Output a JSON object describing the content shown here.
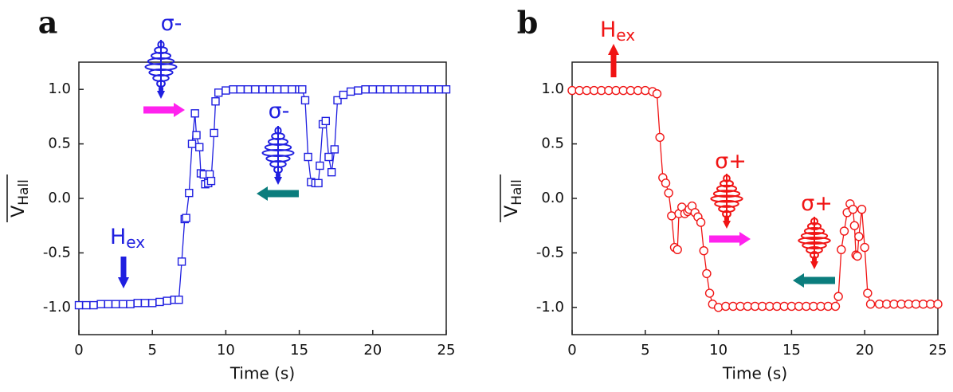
{
  "chart_data": [
    {
      "type": "line",
      "panel_label": "a",
      "xlabel": "Time (s)",
      "ylabel": "V",
      "ylabel_sub": "Hall",
      "xlim": [
        0,
        25
      ],
      "xticks": [
        0,
        5,
        10,
        15,
        20,
        25
      ],
      "ylim": [
        -1.25,
        1.25
      ],
      "yticks": [
        {
          "value": -1,
          "label": "-1.0"
        },
        -0.5,
        {
          "value": 0,
          "label": "0.0"
        },
        0.5,
        {
          "value": 1,
          "label": "1.0"
        }
      ],
      "annotations": [
        {
          "text": "σ-"
        },
        {
          "text": "σ-"
        },
        {
          "text": "H",
          "sub": "ex"
        }
      ],
      "series": [
        {
          "color": "#1f1fe0",
          "marker": "square",
          "x": [
            0,
            0.5,
            1,
            1.5,
            2,
            2.5,
            3,
            3.5,
            4,
            4.5,
            5,
            5.5,
            6,
            6.5,
            6.8,
            7.0,
            7.2,
            7.3,
            7.5,
            7.7,
            7.9,
            8.0,
            8.2,
            8.3,
            8.5,
            8.6,
            8.8,
            8.9,
            9.0,
            9.2,
            9.3,
            9.5,
            10,
            10.5,
            11,
            11.5,
            12,
            12.5,
            13,
            13.5,
            14,
            14.5,
            15,
            15.2,
            15.4,
            15.6,
            15.8,
            16.1,
            16.3,
            16.4,
            16.6,
            16.8,
            17.0,
            17.2,
            17.4,
            17.6,
            18,
            18.5,
            19,
            19.5,
            20,
            20.5,
            21,
            21.5,
            22,
            22.5,
            23,
            23.5,
            24,
            24.5,
            25
          ],
          "values": [
            -0.98,
            -0.98,
            -0.98,
            -0.97,
            -0.97,
            -0.97,
            -0.97,
            -0.97,
            -0.96,
            -0.96,
            -0.96,
            -0.95,
            -0.94,
            -0.93,
            -0.93,
            -0.58,
            -0.19,
            -0.18,
            0.05,
            0.5,
            0.78,
            0.58,
            0.47,
            0.23,
            0.22,
            0.13,
            0.14,
            0.22,
            0.16,
            0.6,
            0.89,
            0.97,
            0.99,
            1,
            1,
            1,
            1,
            1,
            1,
            1,
            1,
            1,
            1,
            1,
            0.9,
            0.38,
            0.15,
            0.14,
            0.14,
            0.3,
            0.68,
            0.71,
            0.38,
            0.24,
            0.45,
            0.9,
            0.95,
            0.98,
            0.99,
            1,
            1,
            1,
            1,
            1,
            1,
            1,
            1,
            1,
            1,
            1,
            1
          ]
        }
      ]
    },
    {
      "type": "line",
      "panel_label": "b",
      "xlabel": "Time (s)",
      "ylabel": "V",
      "ylabel_sub": "Hall",
      "xlim": [
        0,
        25
      ],
      "xticks": [
        0,
        5,
        10,
        15,
        20,
        25
      ],
      "ylim": [
        -1.25,
        1.25
      ],
      "yticks": [
        {
          "value": -1,
          "label": "-1.0"
        },
        -0.5,
        {
          "value": 0,
          "label": "0.0"
        },
        0.5,
        {
          "value": 1,
          "label": "1.0"
        }
      ],
      "annotations": [
        {
          "text": "H",
          "sub": "ex"
        },
        {
          "text": "σ+"
        },
        {
          "text": "σ+"
        }
      ],
      "series": [
        {
          "color": "#f01414",
          "marker": "circle",
          "x": [
            0,
            0.5,
            1,
            1.5,
            2,
            2.5,
            3,
            3.5,
            4,
            4.5,
            5,
            5.5,
            5.8,
            6.0,
            6.2,
            6.4,
            6.6,
            6.8,
            7.0,
            7.2,
            7.3,
            7.5,
            7.7,
            7.9,
            8.0,
            8.2,
            8.4,
            8.6,
            8.8,
            9.0,
            9.2,
            9.4,
            9.6,
            10,
            10.5,
            11,
            11.5,
            12,
            12.5,
            13,
            13.5,
            14,
            14.5,
            15,
            15.5,
            16,
            16.5,
            17,
            17.5,
            18,
            18.2,
            18.4,
            18.6,
            18.8,
            19.0,
            19.2,
            19.3,
            19.4,
            19.5,
            19.6,
            19.8,
            20.0,
            20.2,
            20.4,
            21,
            21.5,
            22,
            22.5,
            23,
            23.5,
            24,
            24.5,
            25
          ],
          "values": [
            0.99,
            0.99,
            0.99,
            0.99,
            0.99,
            0.99,
            0.99,
            0.99,
            0.99,
            0.99,
            0.99,
            0.98,
            0.96,
            0.56,
            0.19,
            0.14,
            0.05,
            -0.16,
            -0.45,
            -0.47,
            -0.14,
            -0.08,
            -0.14,
            -0.12,
            -0.1,
            -0.07,
            -0.13,
            -0.17,
            -0.22,
            -0.48,
            -0.69,
            -0.87,
            -0.97,
            -1,
            -0.99,
            -0.99,
            -0.99,
            -0.99,
            -0.99,
            -0.99,
            -0.99,
            -0.99,
            -0.99,
            -0.99,
            -0.99,
            -0.99,
            -0.99,
            -0.99,
            -0.99,
            -0.99,
            -0.9,
            -0.47,
            -0.3,
            -0.13,
            -0.05,
            -0.1,
            -0.25,
            -0.52,
            -0.53,
            -0.35,
            -0.1,
            -0.45,
            -0.87,
            -0.97,
            -0.97,
            -0.97,
            -0.97,
            -0.97,
            -0.97,
            -0.97,
            -0.97,
            -0.97,
            -0.97
          ]
        }
      ]
    }
  ]
}
